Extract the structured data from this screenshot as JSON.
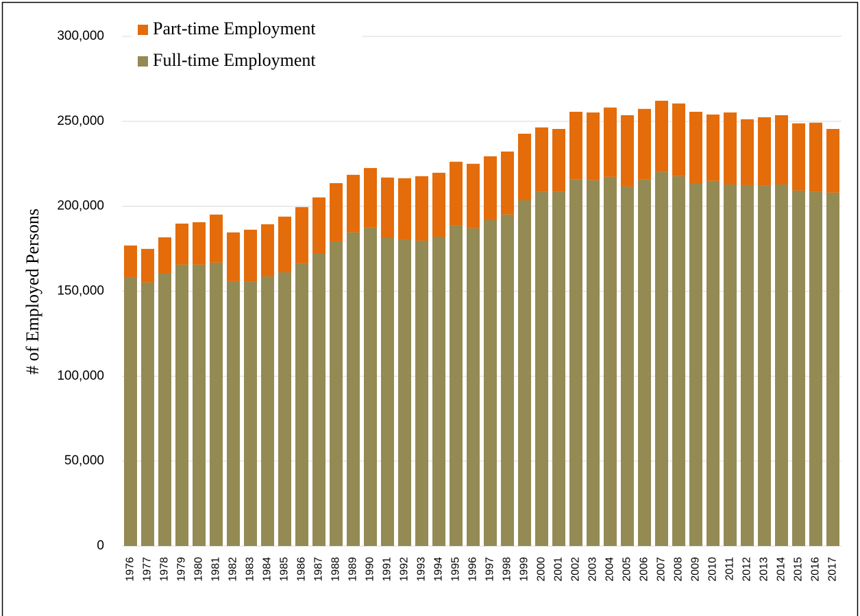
{
  "chart_data": {
    "type": "stacked_bar",
    "y_axis_label": "# of Employed Persons",
    "categories": [
      "1976",
      "1977",
      "1978",
      "1979",
      "1980",
      "1981",
      "1982",
      "1983",
      "1984",
      "1985",
      "1986",
      "1987",
      "1988",
      "1989",
      "1990",
      "1991",
      "1992",
      "1993",
      "1994",
      "1995",
      "1996",
      "1997",
      "1998",
      "1999",
      "2000",
      "2001",
      "2002",
      "2003",
      "2004",
      "2005",
      "2006",
      "2007",
      "2008",
      "2009",
      "2010",
      "2011",
      "2012",
      "2013",
      "2014",
      "2015",
      "2016",
      "2017"
    ],
    "series": [
      {
        "name": "Full-time Employment",
        "color": "#948a54",
        "values": [
          158300,
          155100,
          160700,
          165600,
          165600,
          166800,
          155900,
          155500,
          158700,
          161100,
          166400,
          172000,
          179300,
          184600,
          187400,
          181300,
          180500,
          179700,
          182100,
          188600,
          187000,
          191800,
          195100,
          203500,
          208400,
          208400,
          215700,
          215300,
          217300,
          211600,
          215700,
          220100,
          217700,
          213600,
          214900,
          212800,
          212400,
          212000,
          212800,
          209200,
          208400,
          208000
        ]
      },
      {
        "name": "Part-time Employment",
        "color": "#e46c0a",
        "values": [
          18600,
          19800,
          21000,
          24200,
          25000,
          28300,
          28700,
          30700,
          30700,
          32800,
          33100,
          33200,
          34300,
          33900,
          35100,
          35600,
          36000,
          38000,
          37600,
          37600,
          38000,
          37600,
          37100,
          39200,
          38000,
          37100,
          39900,
          39900,
          40800,
          42000,
          41600,
          42000,
          42800,
          42000,
          39100,
          42400,
          38800,
          40400,
          40800,
          39600,
          40800,
          37500
        ]
      }
    ],
    "ylim": [
      0,
      300000
    ],
    "yticks": [
      0,
      {
        "value": 50000,
        "label": "50,000"
      },
      {
        "value": 100000,
        "label": "100,000"
      },
      {
        "value": 150000,
        "label": "150,000"
      },
      {
        "value": 200000,
        "label": "200,000"
      },
      {
        "value": 250000,
        "label": "250,000"
      },
      {
        "value": 300000,
        "label": "300,000"
      }
    ],
    "grid": true,
    "legend": "top-left"
  }
}
